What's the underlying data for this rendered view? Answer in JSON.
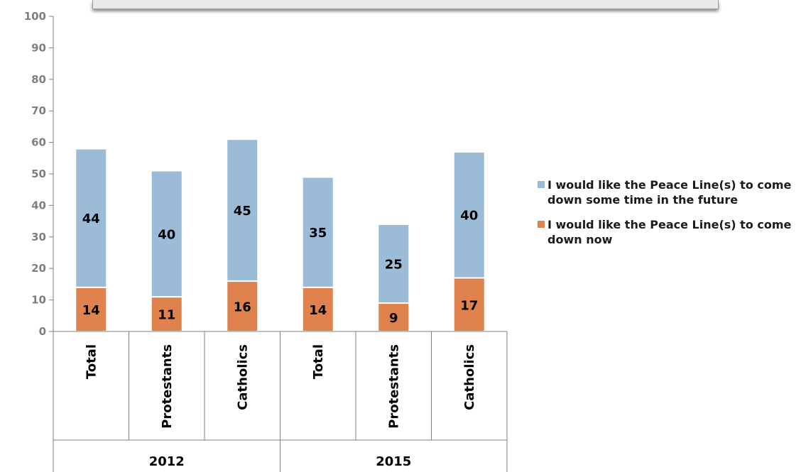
{
  "chart_data": {
    "type": "bar",
    "stacked": true,
    "groups": [
      {
        "label": "2012",
        "categories": [
          "Total",
          "Protestants",
          "Catholics"
        ]
      },
      {
        "label": "2015",
        "categories": [
          "Total",
          "Protestants",
          "Catholics"
        ]
      }
    ],
    "series": [
      {
        "name": "I would like the Peace Line(s) to come down now",
        "color": "#e0824d",
        "values": [
          14,
          11,
          16,
          14,
          9,
          17
        ]
      },
      {
        "name": "I would like the Peace Line(s) to come down some time in the future",
        "color": "#9bbbd7",
        "values": [
          44,
          40,
          45,
          35,
          25,
          40
        ]
      }
    ],
    "yticks": [
      "0",
      "10",
      "20",
      "30",
      "40",
      "50",
      "60",
      "70",
      "80",
      "90",
      "100"
    ],
    "ylim": [
      0,
      100
    ],
    "legend_position": "right",
    "grid": false
  }
}
